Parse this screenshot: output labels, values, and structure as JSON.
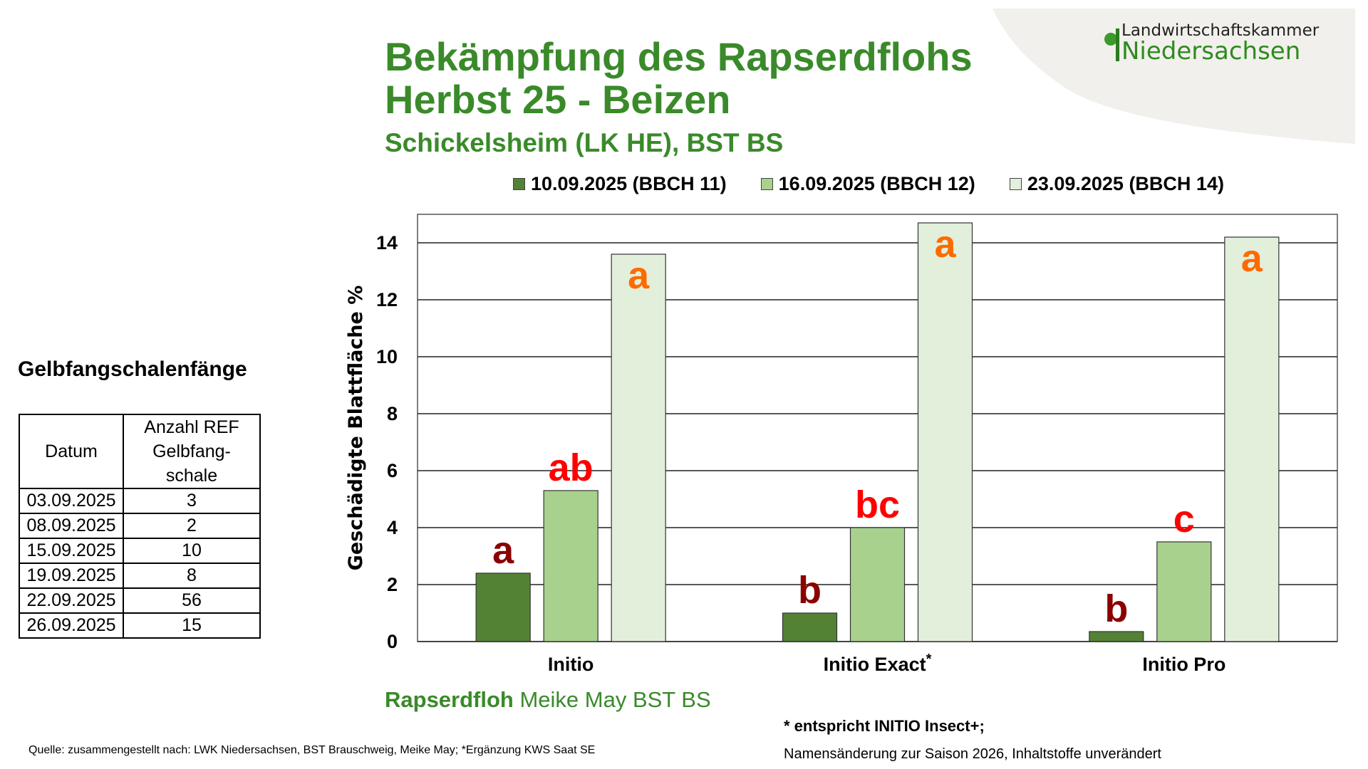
{
  "logo": {
    "line1": "Landwirtschaftskammer",
    "line2": "Niedersachsen"
  },
  "title": {
    "line1": "Bekämpfung des Rapserdflohs",
    "line2": "Herbst 25 - Beizen",
    "subtitle": "Schickelsheim (LK HE), BST BS"
  },
  "table": {
    "title": "Gelbfangschalenfänge",
    "headers": [
      "Datum",
      "Anzahl REF Gelbfang-schale"
    ],
    "rows": [
      [
        "03.09.2025",
        "3"
      ],
      [
        "08.09.2025",
        "2"
      ],
      [
        "15.09.2025",
        "10"
      ],
      [
        "19.09.2025",
        "8"
      ],
      [
        "22.09.2025",
        "56"
      ],
      [
        "26.09.2025",
        "15"
      ]
    ]
  },
  "chart_data": {
    "type": "bar",
    "title": "",
    "xlabel": "",
    "ylabel": "Geschädigte Blattfläche %",
    "ylim": [
      0,
      15
    ],
    "yticks": [
      "0",
      "2",
      "4",
      "6",
      "8",
      "10",
      "12",
      "14"
    ],
    "grid": true,
    "legend_position": "top",
    "categories": [
      "Initio",
      "Initio Exact",
      "Initio Pro"
    ],
    "category_marks": [
      "",
      "*",
      ""
    ],
    "series": [
      {
        "name": "10.09.2025 (BBCH 11)",
        "color": "#548235",
        "values": [
          2.4,
          1.0,
          0.35
        ],
        "letters": [
          "a",
          "b",
          "b"
        ],
        "letter_color": "#8b0000"
      },
      {
        "name": "16.09.2025 (BBCH 12)",
        "color": "#a9d18e",
        "values": [
          5.3,
          4.0,
          3.5
        ],
        "letters": [
          "ab",
          "bc",
          "c"
        ],
        "letter_color": "#ff0000"
      },
      {
        "name": "23.09.2025 (BBCH 14)",
        "color": "#e2efda",
        "values": [
          13.6,
          14.7,
          14.2
        ],
        "letters": [
          "a",
          "a",
          "a"
        ],
        "letter_color": "#ff6a00"
      }
    ]
  },
  "footer": {
    "source_bold": "Rapserdfloh",
    "source_rest": " Meike May BST BS",
    "footnote1": "* entspricht INITIO Insect+;",
    "footnote2": "Namensänderung zur Saison 2026, Inhaltstoffe unverändert",
    "quelle": "Quelle: zusammengestellt nach: LWK Niedersachsen, BST Brauschweig, Meike May; *Ergänzung KWS Saat SE"
  }
}
